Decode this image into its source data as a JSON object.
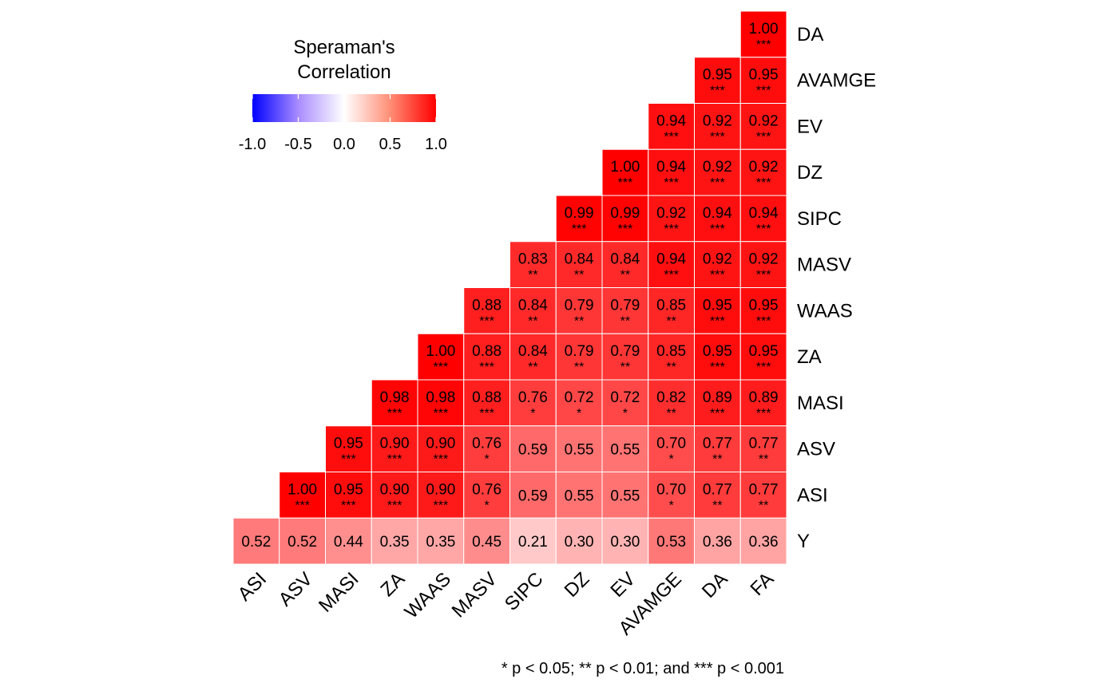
{
  "chart_data": {
    "type": "heatmap",
    "legend": {
      "title_lines": [
        "Speraman's",
        "Correlation"
      ],
      "ticks": [
        "-1.0",
        "-0.5",
        "0.0",
        "0.5",
        "1.0"
      ],
      "range": [
        -1,
        1
      ],
      "placement": "top-left",
      "colors": {
        "low": "#0000FF",
        "mid": "#FFFFFF",
        "high": "#FF0000"
      }
    },
    "x_labels": [
      "ASI",
      "ASV",
      "MASI",
      "ZA",
      "WAAS",
      "MASV",
      "SIPC",
      "DZ",
      "EV",
      "AVAMGE",
      "DA",
      "FA"
    ],
    "y_labels": [
      "DA",
      "AVAMGE",
      "EV",
      "DZ",
      "SIPC",
      "MASV",
      "WAAS",
      "ZA",
      "MASI",
      "ASV",
      "ASI",
      "Y"
    ],
    "rows": [
      {
        "y": "DA",
        "cells": [
          {
            "x": "FA",
            "value": 1.0,
            "label": "1.00",
            "sig": "***"
          }
        ]
      },
      {
        "y": "AVAMGE",
        "cells": [
          {
            "x": "DA",
            "value": 0.95,
            "label": "0.95",
            "sig": "***"
          },
          {
            "x": "FA",
            "value": 0.95,
            "label": "0.95",
            "sig": "***"
          }
        ]
      },
      {
        "y": "EV",
        "cells": [
          {
            "x": "AVAMGE",
            "value": 0.94,
            "label": "0.94",
            "sig": "***"
          },
          {
            "x": "DA",
            "value": 0.92,
            "label": "0.92",
            "sig": "***"
          },
          {
            "x": "FA",
            "value": 0.92,
            "label": "0.92",
            "sig": "***"
          }
        ]
      },
      {
        "y": "DZ",
        "cells": [
          {
            "x": "EV",
            "value": 1.0,
            "label": "1.00",
            "sig": "***"
          },
          {
            "x": "AVAMGE",
            "value": 0.94,
            "label": "0.94",
            "sig": "***"
          },
          {
            "x": "DA",
            "value": 0.92,
            "label": "0.92",
            "sig": "***"
          },
          {
            "x": "FA",
            "value": 0.92,
            "label": "0.92",
            "sig": "***"
          }
        ]
      },
      {
        "y": "SIPC",
        "cells": [
          {
            "x": "DZ",
            "value": 0.99,
            "label": "0.99",
            "sig": "***"
          },
          {
            "x": "EV",
            "value": 0.99,
            "label": "0.99",
            "sig": "***"
          },
          {
            "x": "AVAMGE",
            "value": 0.92,
            "label": "0.92",
            "sig": "***"
          },
          {
            "x": "DA",
            "value": 0.94,
            "label": "0.94",
            "sig": "***"
          },
          {
            "x": "FA",
            "value": 0.94,
            "label": "0.94",
            "sig": "***"
          }
        ]
      },
      {
        "y": "MASV",
        "cells": [
          {
            "x": "SIPC",
            "value": 0.83,
            "label": "0.83",
            "sig": "**"
          },
          {
            "x": "DZ",
            "value": 0.84,
            "label": "0.84",
            "sig": "**"
          },
          {
            "x": "EV",
            "value": 0.84,
            "label": "0.84",
            "sig": "**"
          },
          {
            "x": "AVAMGE",
            "value": 0.94,
            "label": "0.94",
            "sig": "***"
          },
          {
            "x": "DA",
            "value": 0.92,
            "label": "0.92",
            "sig": "***"
          },
          {
            "x": "FA",
            "value": 0.92,
            "label": "0.92",
            "sig": "***"
          }
        ]
      },
      {
        "y": "WAAS",
        "cells": [
          {
            "x": "MASV",
            "value": 0.88,
            "label": "0.88",
            "sig": "***"
          },
          {
            "x": "SIPC",
            "value": 0.84,
            "label": "0.84",
            "sig": "**"
          },
          {
            "x": "DZ",
            "value": 0.79,
            "label": "0.79",
            "sig": "**"
          },
          {
            "x": "EV",
            "value": 0.79,
            "label": "0.79",
            "sig": "**"
          },
          {
            "x": "AVAMGE",
            "value": 0.85,
            "label": "0.85",
            "sig": "**"
          },
          {
            "x": "DA",
            "value": 0.95,
            "label": "0.95",
            "sig": "***"
          },
          {
            "x": "FA",
            "value": 0.95,
            "label": "0.95",
            "sig": "***"
          }
        ]
      },
      {
        "y": "ZA",
        "cells": [
          {
            "x": "WAAS",
            "value": 1.0,
            "label": "1.00",
            "sig": "***"
          },
          {
            "x": "MASV",
            "value": 0.88,
            "label": "0.88",
            "sig": "***"
          },
          {
            "x": "SIPC",
            "value": 0.84,
            "label": "0.84",
            "sig": "**"
          },
          {
            "x": "DZ",
            "value": 0.79,
            "label": "0.79",
            "sig": "**"
          },
          {
            "x": "EV",
            "value": 0.79,
            "label": "0.79",
            "sig": "**"
          },
          {
            "x": "AVAMGE",
            "value": 0.85,
            "label": "0.85",
            "sig": "**"
          },
          {
            "x": "DA",
            "value": 0.95,
            "label": "0.95",
            "sig": "***"
          },
          {
            "x": "FA",
            "value": 0.95,
            "label": "0.95",
            "sig": "***"
          }
        ]
      },
      {
        "y": "MASI",
        "cells": [
          {
            "x": "ZA",
            "value": 0.98,
            "label": "0.98",
            "sig": "***"
          },
          {
            "x": "WAAS",
            "value": 0.98,
            "label": "0.98",
            "sig": "***"
          },
          {
            "x": "MASV",
            "value": 0.88,
            "label": "0.88",
            "sig": "***"
          },
          {
            "x": "SIPC",
            "value": 0.76,
            "label": "0.76",
            "sig": "*"
          },
          {
            "x": "DZ",
            "value": 0.72,
            "label": "0.72",
            "sig": "*"
          },
          {
            "x": "EV",
            "value": 0.72,
            "label": "0.72",
            "sig": "*"
          },
          {
            "x": "AVAMGE",
            "value": 0.82,
            "label": "0.82",
            "sig": "**"
          },
          {
            "x": "DA",
            "value": 0.89,
            "label": "0.89",
            "sig": "***"
          },
          {
            "x": "FA",
            "value": 0.89,
            "label": "0.89",
            "sig": "***"
          }
        ]
      },
      {
        "y": "ASV",
        "cells": [
          {
            "x": "MASI",
            "value": 0.95,
            "label": "0.95",
            "sig": "***"
          },
          {
            "x": "ZA",
            "value": 0.9,
            "label": "0.90",
            "sig": "***"
          },
          {
            "x": "WAAS",
            "value": 0.9,
            "label": "0.90",
            "sig": "***"
          },
          {
            "x": "MASV",
            "value": 0.76,
            "label": "0.76",
            "sig": "*"
          },
          {
            "x": "SIPC",
            "value": 0.59,
            "label": "0.59",
            "sig": ""
          },
          {
            "x": "DZ",
            "value": 0.55,
            "label": "0.55",
            "sig": ""
          },
          {
            "x": "EV",
            "value": 0.55,
            "label": "0.55",
            "sig": ""
          },
          {
            "x": "AVAMGE",
            "value": 0.7,
            "label": "0.70",
            "sig": "*"
          },
          {
            "x": "DA",
            "value": 0.77,
            "label": "0.77",
            "sig": "**"
          },
          {
            "x": "FA",
            "value": 0.77,
            "label": "0.77",
            "sig": "**"
          }
        ]
      },
      {
        "y": "ASI",
        "cells": [
          {
            "x": "ASV",
            "value": 1.0,
            "label": "1.00",
            "sig": "***"
          },
          {
            "x": "MASI",
            "value": 0.95,
            "label": "0.95",
            "sig": "***"
          },
          {
            "x": "ZA",
            "value": 0.9,
            "label": "0.90",
            "sig": "***"
          },
          {
            "x": "WAAS",
            "value": 0.9,
            "label": "0.90",
            "sig": "***"
          },
          {
            "x": "MASV",
            "value": 0.76,
            "label": "0.76",
            "sig": "*"
          },
          {
            "x": "SIPC",
            "value": 0.59,
            "label": "0.59",
            "sig": ""
          },
          {
            "x": "DZ",
            "value": 0.55,
            "label": "0.55",
            "sig": ""
          },
          {
            "x": "EV",
            "value": 0.55,
            "label": "0.55",
            "sig": ""
          },
          {
            "x": "AVAMGE",
            "value": 0.7,
            "label": "0.70",
            "sig": "*"
          },
          {
            "x": "DA",
            "value": 0.77,
            "label": "0.77",
            "sig": "**"
          },
          {
            "x": "FA",
            "value": 0.77,
            "label": "0.77",
            "sig": "**"
          }
        ]
      },
      {
        "y": "Y",
        "cells": [
          {
            "x": "ASI",
            "value": 0.52,
            "label": "0.52",
            "sig": ""
          },
          {
            "x": "ASV",
            "value": 0.52,
            "label": "0.52",
            "sig": ""
          },
          {
            "x": "MASI",
            "value": 0.44,
            "label": "0.44",
            "sig": ""
          },
          {
            "x": "ZA",
            "value": 0.35,
            "label": "0.35",
            "sig": ""
          },
          {
            "x": "WAAS",
            "value": 0.35,
            "label": "0.35",
            "sig": ""
          },
          {
            "x": "MASV",
            "value": 0.45,
            "label": "0.45",
            "sig": ""
          },
          {
            "x": "SIPC",
            "value": 0.21,
            "label": "0.21",
            "sig": ""
          },
          {
            "x": "DZ",
            "value": 0.3,
            "label": "0.30",
            "sig": ""
          },
          {
            "x": "EV",
            "value": 0.3,
            "label": "0.30",
            "sig": ""
          },
          {
            "x": "AVAMGE",
            "value": 0.53,
            "label": "0.53",
            "sig": ""
          },
          {
            "x": "DA",
            "value": 0.36,
            "label": "0.36",
            "sig": ""
          },
          {
            "x": "FA",
            "value": 0.36,
            "label": "0.36",
            "sig": ""
          }
        ]
      }
    ],
    "caption": "* p < 0.05; ** p < 0.01; and *** p < 0.001"
  }
}
